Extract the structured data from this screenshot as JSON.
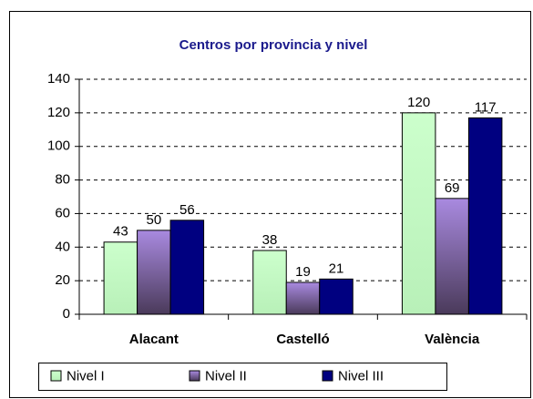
{
  "chart_data": {
    "type": "bar",
    "title": "Centros por provincia y nivel",
    "categories": [
      "Alacant",
      "Castelló",
      "València"
    ],
    "series": [
      {
        "name": "Nivel I",
        "color": "#ccffcc",
        "values": [
          43,
          38,
          120
        ]
      },
      {
        "name": "Nivel II",
        "color": "#a98ae0",
        "values": [
          50,
          19,
          69
        ]
      },
      {
        "name": "Nivel III",
        "color": "#000080",
        "values": [
          56,
          21,
          117
        ]
      }
    ],
    "ylim": [
      0,
      140
    ],
    "yticks": [
      0,
      20,
      40,
      60,
      80,
      100,
      120,
      140
    ],
    "grid": true,
    "legend": "bottom"
  }
}
